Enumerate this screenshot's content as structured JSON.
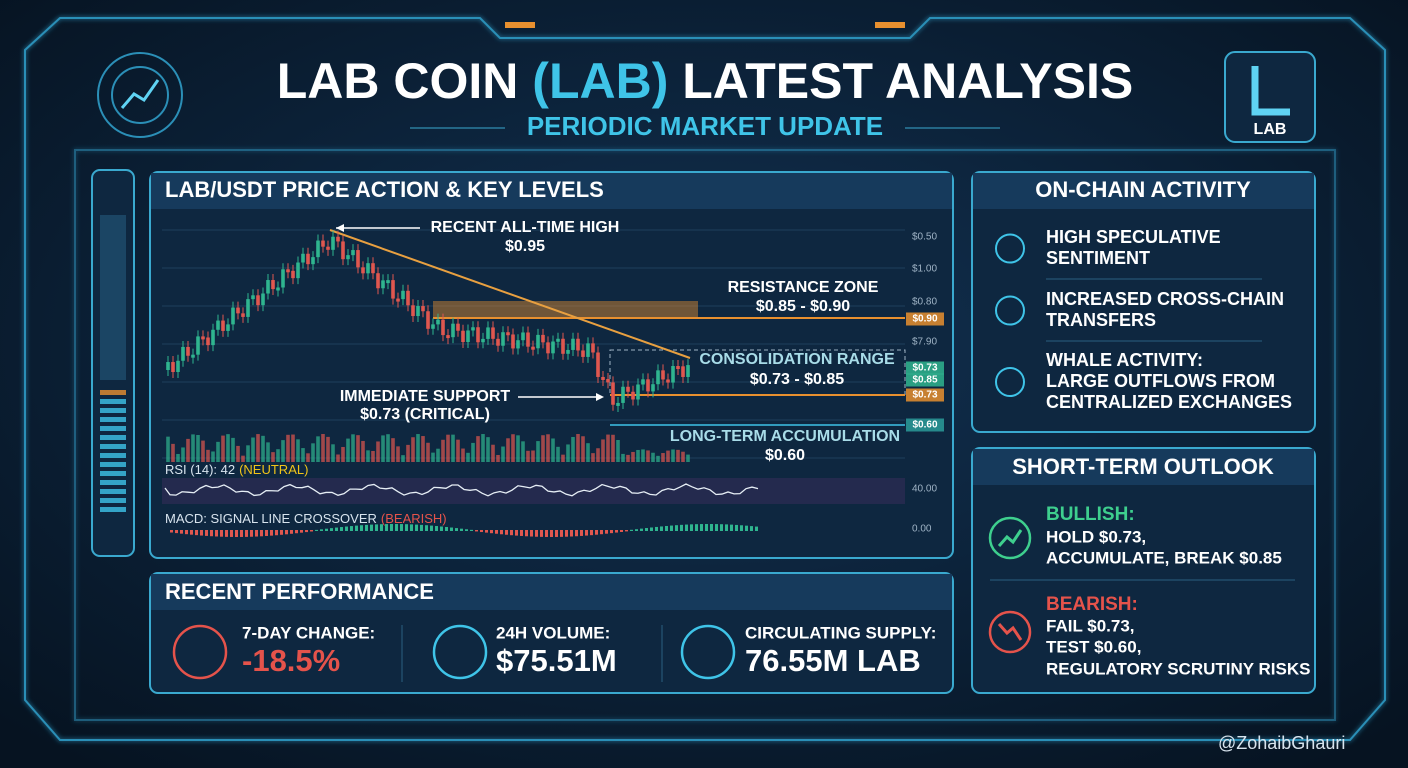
{
  "header": {
    "title_parts": [
      "LAB COIN",
      "(LAB)",
      "LATEST ANALYSIS"
    ],
    "subtitle": "PERIODIC MARKET UPDATE",
    "logo_label": "LAB"
  },
  "price_panel": {
    "title": "LAB/USDT PRICE ACTION & KEY LEVELS",
    "annotations": {
      "ath": [
        "RECENT ALL-TIME HIGH",
        "$0.95"
      ],
      "resistance": [
        "RESISTANCE ZONE",
        "$0.85 - $0.90"
      ],
      "consolidation": [
        "CONSOLIDATION RANGE",
        "$0.73 - $0.85"
      ],
      "support": [
        "IMMEDIATE SUPPORT",
        "$0.73 (CRITICAL)"
      ],
      "accumulation": [
        "LONG-TERM ACCUMULATION",
        "$0.60"
      ]
    },
    "axis_labels": [
      "$0.50",
      "$1.00",
      "$0.80",
      "$7.90"
    ],
    "level_tags": [
      "$0.90",
      "$0.73",
      "$0.85",
      "$0.73",
      "$0.60"
    ],
    "rsi": {
      "label": "RSI (14): 42",
      "state": "(NEUTRAL)",
      "level": "40.00"
    },
    "macd": {
      "label": "MACD: SIGNAL LINE CROSSOVER",
      "state": "(BEARISH)",
      "level": "0.00"
    }
  },
  "onchain": {
    "title": "ON-CHAIN ACTIVITY",
    "items": [
      [
        "HIGH SPECULATIVE",
        "SENTIMENT"
      ],
      [
        "INCREASED CROSS-CHAIN",
        "TRANSFERS"
      ],
      [
        "WHALE ACTIVITY:",
        "LARGE OUTFLOWS FROM",
        "CENTRALIZED EXCHANGES"
      ]
    ]
  },
  "outlook": {
    "title": "SHORT-TERM OUTLOOK",
    "bullish": {
      "label": "BULLISH:",
      "lines": [
        "HOLD $0.73,",
        "ACCUMULATE, BREAK $0.85"
      ]
    },
    "bearish": {
      "label": "BEARISH:",
      "lines": [
        "FAIL $0.73,",
        "TEST $0.60,",
        "REGULATORY SCRUTINY RISKS"
      ]
    }
  },
  "performance": {
    "title": "RECENT PERFORMANCE",
    "stats": [
      {
        "label": "7-DAY CHANGE:",
        "value": "-18.5%"
      },
      {
        "label": "24H VOLUME:",
        "value": "$75.51M"
      },
      {
        "label": "CIRCULATING SUPPLY:",
        "value": "76.55M LAB"
      }
    ]
  },
  "watermark": "@ZohaibGhauri"
}
